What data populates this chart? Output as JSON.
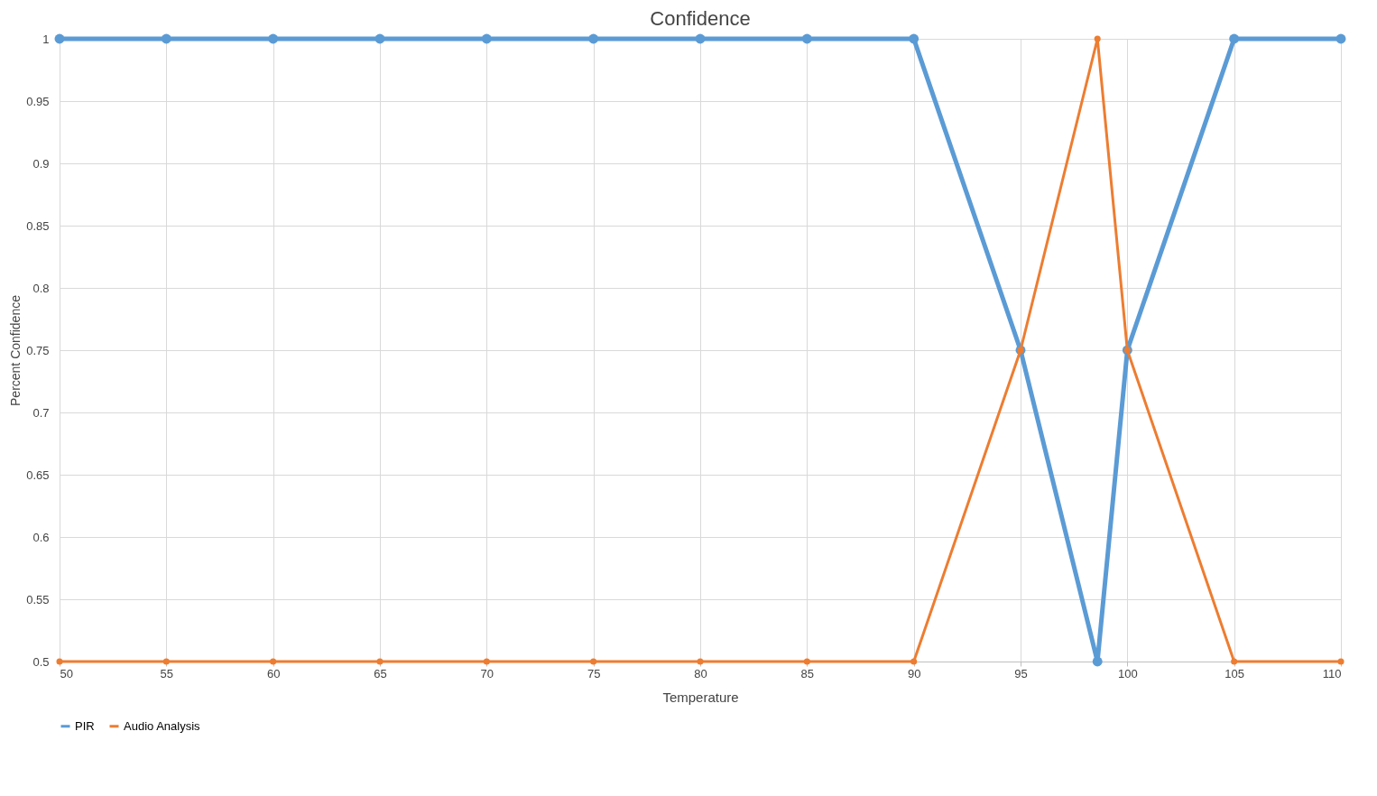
{
  "chart_data": {
    "type": "line",
    "title": "Confidence",
    "xlabel": "Temperature",
    "ylabel": "Percent Confidence",
    "x": [
      50,
      55,
      60,
      65,
      70,
      75,
      80,
      85,
      90,
      95,
      98.6,
      100,
      105,
      110
    ],
    "series": [
      {
        "name": "PIR",
        "color": "#5b9bd5",
        "values": [
          1,
          1,
          1,
          1,
          1,
          1,
          1,
          1,
          1,
          0.75,
          0.5,
          0.75,
          1,
          1
        ]
      },
      {
        "name": "Audio Analysis",
        "color": "#ed7d31",
        "values": [
          0.5,
          0.5,
          0.5,
          0.5,
          0.5,
          0.5,
          0.5,
          0.5,
          0.5,
          0.75,
          1,
          0.75,
          0.5,
          0.5
        ]
      }
    ],
    "xlim": [
      50,
      110
    ],
    "xticks": [
      50,
      55,
      60,
      65,
      70,
      75,
      80,
      85,
      90,
      95,
      100,
      105,
      110
    ],
    "ylim": [
      0.5,
      1
    ],
    "yticks": [
      0.5,
      0.55,
      0.6,
      0.65,
      0.7,
      0.75,
      0.8,
      0.85,
      0.9,
      0.95,
      1
    ],
    "grid": true,
    "legend": "bottom",
    "marker": "circle",
    "line_style": "solid"
  }
}
